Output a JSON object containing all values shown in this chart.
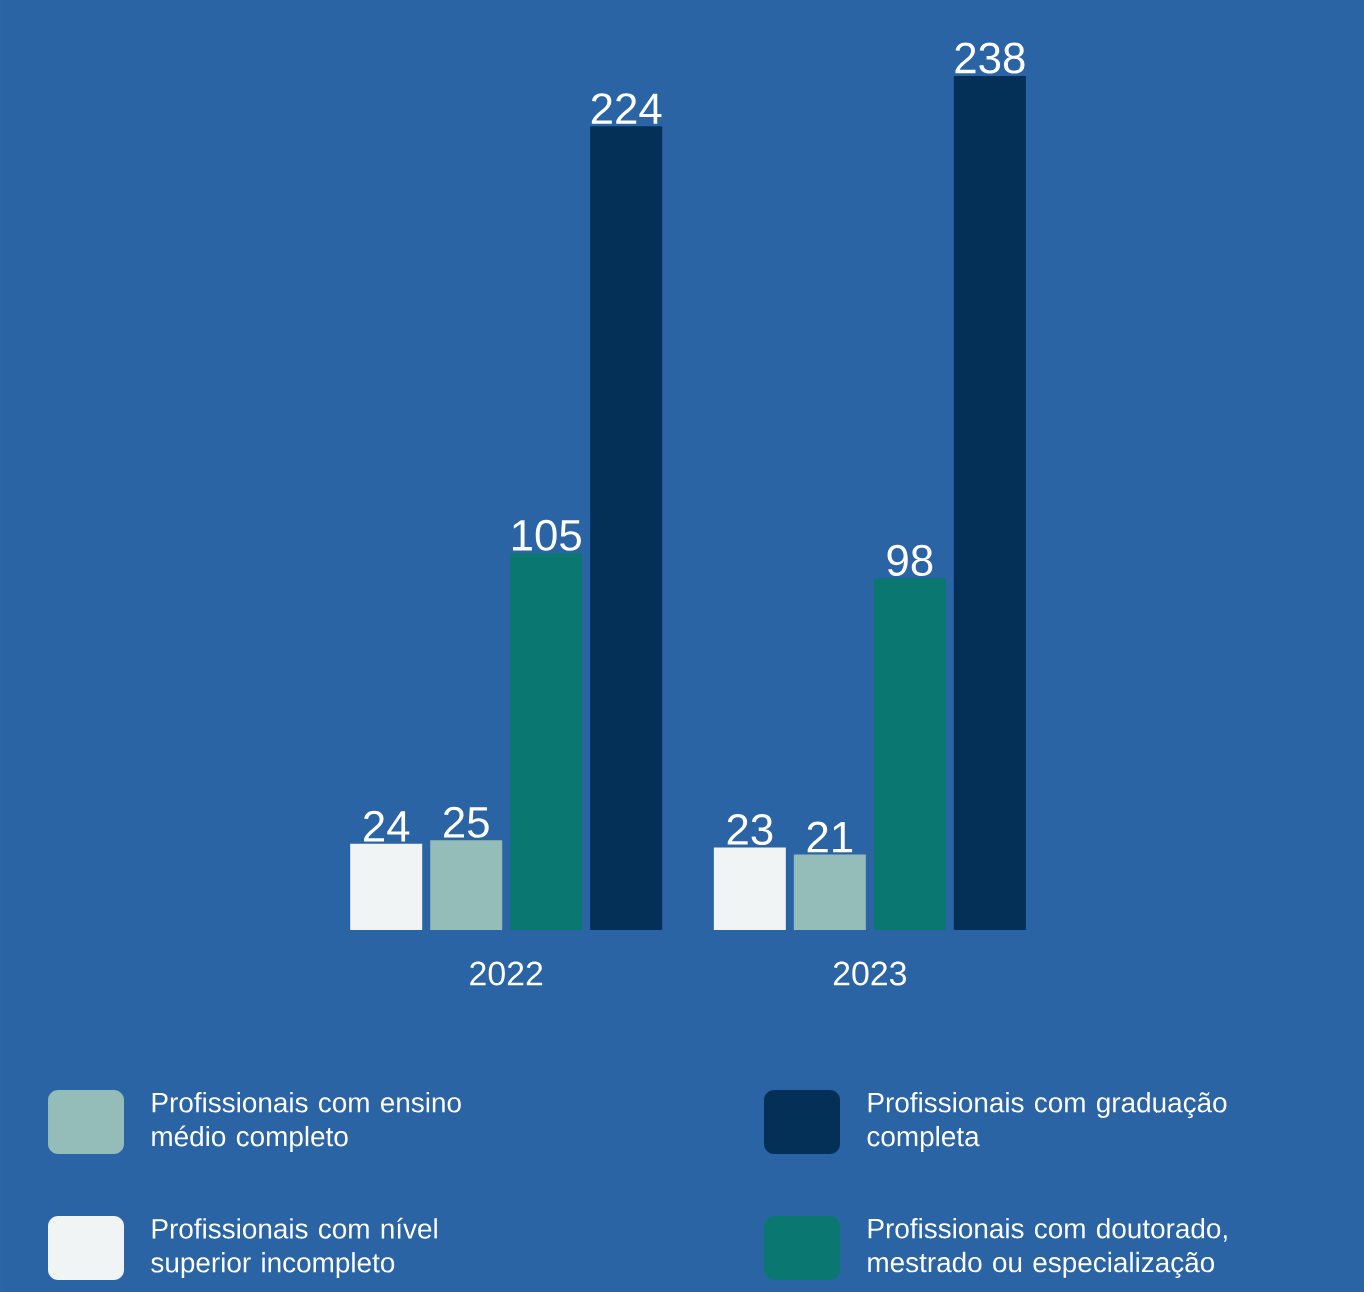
{
  "chart_data": {
    "type": "bar",
    "categories": [
      "2022",
      "2023"
    ],
    "series": [
      {
        "name": "Profissionais com nível superior incompleto",
        "color": "#f0f4f4",
        "values": [
          24,
          23
        ]
      },
      {
        "name": "Profissionais com ensino médio completo",
        "color": "#94bcb8",
        "values": [
          25,
          21
        ]
      },
      {
        "name": "Profissionais com doutorado, mestrado ou especialização",
        "color": "#0a7870",
        "values": [
          105,
          98
        ]
      },
      {
        "name": "Profissionais com graduação completa",
        "color": "#043058",
        "values": [
          224,
          238
        ]
      }
    ],
    "data_labels": true,
    "legend": "bottom"
  }
}
